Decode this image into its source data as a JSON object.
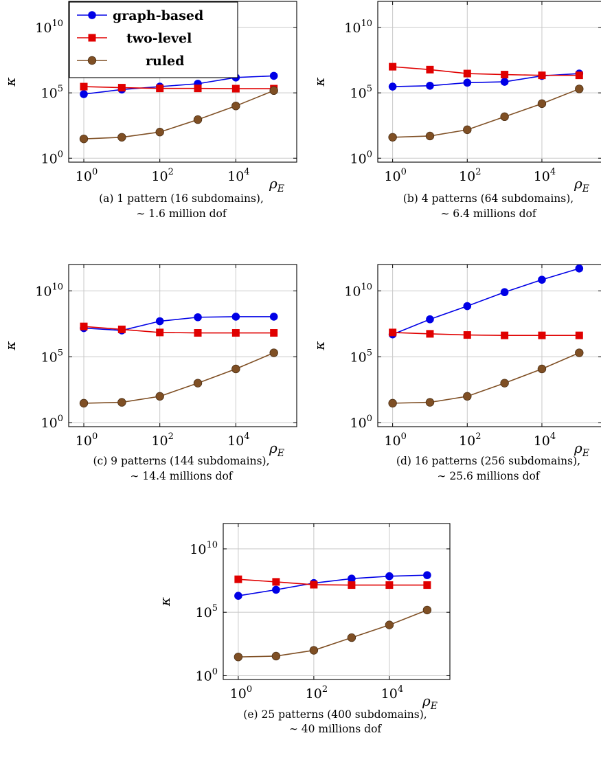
{
  "colors": {
    "graph_based": "#0000e6",
    "two_level": "#e00000",
    "ruled": "#7f4f24",
    "grid": "#c8c8c8",
    "axis": "#000000"
  },
  "marker_shapes": {
    "graph_based": "circle",
    "two_level": "square",
    "ruled": "circle"
  },
  "legend": {
    "placement": "top-left, inside panel (a)",
    "entries": [
      "graph-based",
      "two-level",
      "ruled"
    ]
  },
  "axis_text": {
    "xlabel_base": "ρ",
    "xlabel_sub": "E",
    "ylabel": "κ",
    "xtick_base": "10",
    "xtick_exps": [
      "0",
      "2",
      "4"
    ],
    "ytick_base": "10",
    "ytick_exps": [
      "0",
      "5",
      "10"
    ]
  },
  "chart_data": [
    {
      "type": "line",
      "panel": "a",
      "x": [
        1,
        10,
        100,
        1000,
        10000,
        100000
      ],
      "xscale": "log",
      "yscale": "log",
      "xlim": [
        0.4,
        400000
      ],
      "ylim": [
        0.5,
        1000000000000.0
      ],
      "grid": true,
      "xlabel": "ρE",
      "ylabel": "κ",
      "series": [
        {
          "name": "graph-based",
          "values": [
            80000,
            180000,
            300000,
            500000,
            1500000,
            2000000
          ]
        },
        {
          "name": "two-level",
          "values": [
            300000,
            250000,
            220000,
            220000,
            210000,
            210000
          ]
        },
        {
          "name": "ruled",
          "values": [
            30,
            40,
            100,
            900,
            10000,
            150000
          ]
        }
      ],
      "caption": [
        "(a) 1 pattern (16 subdomains),",
        "∼ 1.6 million dof"
      ]
    },
    {
      "type": "line",
      "panel": "b",
      "x": [
        1,
        10,
        100,
        1000,
        10000,
        100000
      ],
      "xscale": "log",
      "yscale": "log",
      "xlim": [
        0.4,
        400000
      ],
      "ylim": [
        0.5,
        1000000000000.0
      ],
      "grid": true,
      "xlabel": "ρE",
      "ylabel": "κ",
      "series": [
        {
          "name": "graph-based",
          "values": [
            300000,
            350000,
            600000,
            700000,
            2000000,
            3000000
          ]
        },
        {
          "name": "two-level",
          "values": [
            10000000,
            6000000,
            3000000,
            2500000,
            2200000,
            2200000
          ]
        },
        {
          "name": "ruled",
          "values": [
            40,
            50,
            150,
            1500,
            15000,
            200000
          ]
        }
      ],
      "caption": [
        "(b) 4 patterns (64 subdomains),",
        "∼ 6.4 millions dof"
      ]
    },
    {
      "type": "line",
      "panel": "c",
      "x": [
        1,
        10,
        100,
        1000,
        10000,
        100000
      ],
      "xscale": "log",
      "yscale": "log",
      "xlim": [
        0.4,
        400000
      ],
      "ylim": [
        0.5,
        1000000000000.0
      ],
      "grid": true,
      "xlabel": "ρE",
      "ylabel": "κ",
      "series": [
        {
          "name": "graph-based",
          "values": [
            15000000,
            10000000,
            50000000,
            100000000,
            110000000,
            110000000
          ]
        },
        {
          "name": "two-level",
          "values": [
            20000000,
            12000000,
            7000000,
            6500000,
            6500000,
            6500000
          ]
        },
        {
          "name": "ruled",
          "values": [
            30,
            35,
            100,
            1000,
            12000,
            200000
          ]
        }
      ],
      "caption": [
        "(c) 9 patterns (144 subdomains),",
        "∼ 14.4 millions dof"
      ]
    },
    {
      "type": "line",
      "panel": "d",
      "x": [
        1,
        10,
        100,
        1000,
        10000,
        100000
      ],
      "xscale": "log",
      "yscale": "log",
      "xlim": [
        0.4,
        400000
      ],
      "ylim": [
        0.5,
        1000000000000.0
      ],
      "grid": true,
      "xlabel": "ρE",
      "ylabel": "κ",
      "series": [
        {
          "name": "graph-based",
          "values": [
            5000000,
            70000000,
            700000000,
            8000000000,
            70000000000,
            500000000000
          ]
        },
        {
          "name": "two-level",
          "values": [
            7000000,
            5500000,
            4500000,
            4200000,
            4200000,
            4200000
          ]
        },
        {
          "name": "ruled",
          "values": [
            30,
            35,
            100,
            1000,
            12000,
            200000
          ]
        }
      ],
      "caption": [
        "(d) 16 patterns (256 subdomains),",
        "∼ 25.6 millions dof"
      ]
    },
    {
      "type": "line",
      "panel": "e",
      "x": [
        1,
        10,
        100,
        1000,
        10000,
        100000
      ],
      "xscale": "log",
      "yscale": "log",
      "xlim": [
        0.4,
        400000
      ],
      "ylim": [
        0.5,
        1000000000000.0
      ],
      "grid": true,
      "xlabel": "ρE",
      "ylabel": "κ",
      "series": [
        {
          "name": "graph-based",
          "values": [
            2000000,
            6000000,
            20000000,
            45000000,
            70000000,
            85000000
          ]
        },
        {
          "name": "two-level",
          "values": [
            40000000,
            25000000,
            15000000,
            14000000,
            14000000,
            14000000
          ]
        },
        {
          "name": "ruled",
          "values": [
            30,
            35,
            100,
            1000,
            10000,
            150000
          ]
        }
      ],
      "caption": [
        "(e) 25 patterns (400 subdomains),",
        "∼ 40 millions dof"
      ]
    }
  ]
}
